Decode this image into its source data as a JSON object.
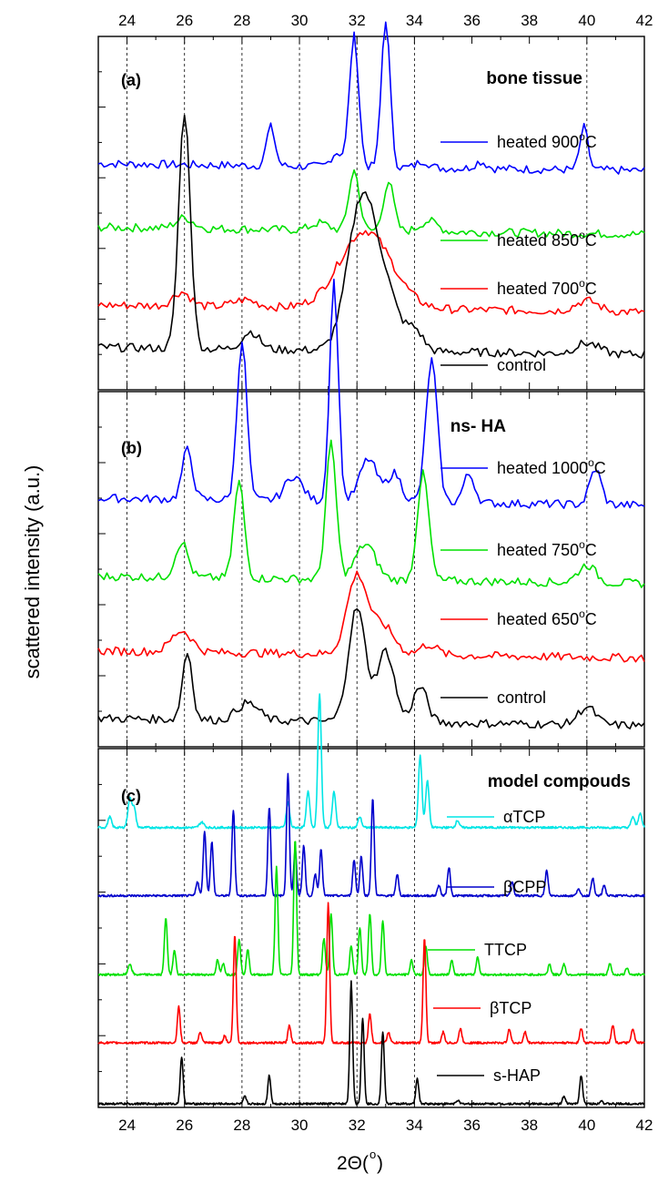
{
  "figure": {
    "ylabel": "scattered intensity (a.u.)",
    "xlabel_main": "2Θ(",
    "xlabel_sup": "o",
    "xlabel_close": ")",
    "xlim": [
      23,
      42
    ],
    "xticks": [
      24,
      26,
      28,
      30,
      32,
      34,
      36,
      38,
      40,
      42
    ],
    "dashed_lines_at": [
      24,
      26,
      28,
      30,
      32,
      34,
      40
    ]
  },
  "chart_data": [
    {
      "type": "line",
      "panel": "(a)",
      "title": "bone tissue",
      "xlim": [
        23,
        42
      ],
      "series": [
        {
          "name": "heated 900",
          "label_main": "heated 900",
          "label_sup": "o",
          "label_unit": "C",
          "color": "#0000ff",
          "base": 0.64,
          "peaks": [
            [
              29.0,
              0.11,
              0.15
            ],
            [
              31.9,
              0.37,
              0.16
            ],
            [
              33.0,
              0.42,
              0.15
            ],
            [
              31.3,
              0.04,
              0.2
            ],
            [
              34.3,
              0.02,
              0.2
            ],
            [
              36.3,
              0.02,
              0.2
            ],
            [
              39.9,
              0.12,
              0.14
            ]
          ]
        },
        {
          "name": "heated 850",
          "label_main": "heated 850",
          "label_sup": "o",
          "label_unit": "C",
          "color": "#00e000",
          "base": 0.46,
          "peaks": [
            [
              26.0,
              0.03,
              0.3
            ],
            [
              31.9,
              0.17,
              0.18
            ],
            [
              33.1,
              0.14,
              0.18
            ],
            [
              30.7,
              0.02,
              0.3
            ],
            [
              34.5,
              0.03,
              0.3
            ]
          ]
        },
        {
          "name": "heated 700",
          "label_main": "heated 700",
          "label_sup": "o",
          "label_unit": "C",
          "color": "#ff0000",
          "base": 0.24,
          "peaks": [
            [
              25.9,
              0.04,
              0.3
            ],
            [
              28.1,
              0.02,
              0.4
            ],
            [
              32.3,
              0.22,
              0.9
            ],
            [
              40.0,
              0.03,
              0.4
            ]
          ]
        },
        {
          "name": "control",
          "label_main": "control",
          "label_sup": "",
          "label_unit": "",
          "color": "#000000",
          "base": 0.12,
          "peaks": [
            [
              26.0,
              0.67,
              0.2
            ],
            [
              28.3,
              0.05,
              0.3
            ],
            [
              32.2,
              0.44,
              0.5
            ],
            [
              33.1,
              0.12,
              0.4
            ],
            [
              34.0,
              0.06,
              0.3
            ],
            [
              40.0,
              0.03,
              0.4
            ]
          ]
        }
      ]
    },
    {
      "type": "line",
      "panel": "(b)",
      "title": "ns- HA",
      "xlim": [
        23,
        42
      ],
      "series": [
        {
          "name": "heated 1000",
          "label_main": "heated 1000",
          "label_sup": "o",
          "label_unit": "C",
          "color": "#0000ff",
          "base": 0.7,
          "peaks": [
            [
              26.1,
              0.14,
              0.18
            ],
            [
              28.0,
              0.45,
              0.17
            ],
            [
              29.8,
              0.07,
              0.3
            ],
            [
              31.2,
              0.62,
              0.15
            ],
            [
              32.4,
              0.12,
              0.3
            ],
            [
              33.3,
              0.08,
              0.25
            ],
            [
              34.6,
              0.4,
              0.2
            ],
            [
              35.9,
              0.08,
              0.2
            ],
            [
              40.3,
              0.1,
              0.2
            ]
          ]
        },
        {
          "name": "heated 750",
          "label_main": "heated 750",
          "label_sup": "o",
          "label_unit": "C",
          "color": "#00e000",
          "base": 0.48,
          "peaks": [
            [
              25.9,
              0.1,
              0.22
            ],
            [
              27.9,
              0.27,
              0.18
            ],
            [
              31.1,
              0.38,
              0.18
            ],
            [
              32.3,
              0.1,
              0.35
            ],
            [
              34.3,
              0.3,
              0.2
            ],
            [
              40.0,
              0.05,
              0.3
            ]
          ]
        },
        {
          "name": "heated 650",
          "label_main": "heated 650",
          "label_sup": "o",
          "label_unit": "C",
          "color": "#ff0000",
          "base": 0.27,
          "peaks": [
            [
              25.9,
              0.06,
              0.35
            ],
            [
              32.0,
              0.22,
              0.35
            ],
            [
              32.9,
              0.08,
              0.4
            ],
            [
              34.5,
              0.03,
              0.3
            ]
          ]
        },
        {
          "name": "control",
          "label_main": "control",
          "label_sup": "",
          "label_unit": "",
          "color": "#000000",
          "base": 0.08,
          "peaks": [
            [
              26.1,
              0.19,
              0.17
            ],
            [
              28.0,
              0.03,
              0.3
            ],
            [
              28.4,
              0.03,
              0.3
            ],
            [
              32.0,
              0.32,
              0.3
            ],
            [
              33.0,
              0.2,
              0.3
            ],
            [
              34.2,
              0.1,
              0.25
            ],
            [
              40.0,
              0.05,
              0.3
            ]
          ]
        }
      ]
    },
    {
      "type": "line",
      "panel": "(c)",
      "title": "model compouds",
      "xlim": [
        23,
        42
      ],
      "series": [
        {
          "name": "αTCP",
          "label_main": "αTCP",
          "label_sup": "",
          "label_unit": "",
          "color": "#00e5e5",
          "base": 0.78,
          "peaks": [
            [
              23.4,
              0.03,
              0.06
            ],
            [
              24.1,
              0.08,
              0.07
            ],
            [
              24.25,
              0.05,
              0.06
            ],
            [
              26.6,
              0.015,
              0.08
            ],
            [
              29.6,
              0.07,
              0.06
            ],
            [
              30.3,
              0.1,
              0.06
            ],
            [
              30.7,
              0.37,
              0.06
            ],
            [
              31.2,
              0.1,
              0.06
            ],
            [
              32.1,
              0.03,
              0.06
            ],
            [
              34.2,
              0.2,
              0.06
            ],
            [
              34.45,
              0.13,
              0.06
            ],
            [
              35.5,
              0.02,
              0.06
            ],
            [
              41.6,
              0.03,
              0.06
            ],
            [
              41.85,
              0.04,
              0.06
            ]
          ]
        },
        {
          "name": "βCPP",
          "label_main": "βCPP",
          "label_sup": "",
          "label_unit": "",
          "color": "#0000cc",
          "base": 0.59,
          "peaks": [
            [
              26.45,
              0.04,
              0.05
            ],
            [
              26.7,
              0.18,
              0.05
            ],
            [
              26.95,
              0.15,
              0.05
            ],
            [
              27.7,
              0.24,
              0.05
            ],
            [
              28.95,
              0.25,
              0.05
            ],
            [
              29.6,
              0.34,
              0.05
            ],
            [
              29.85,
              0.13,
              0.05
            ],
            [
              30.15,
              0.14,
              0.05
            ],
            [
              30.55,
              0.06,
              0.05
            ],
            [
              30.75,
              0.13,
              0.05
            ],
            [
              31.9,
              0.1,
              0.05
            ],
            [
              32.15,
              0.11,
              0.05
            ],
            [
              32.55,
              0.27,
              0.05
            ],
            [
              33.4,
              0.06,
              0.05
            ],
            [
              34.85,
              0.03,
              0.05
            ],
            [
              35.2,
              0.08,
              0.05
            ],
            [
              37.4,
              0.04,
              0.05
            ],
            [
              38.6,
              0.07,
              0.05
            ],
            [
              39.7,
              0.02,
              0.05
            ],
            [
              40.2,
              0.05,
              0.05
            ],
            [
              40.6,
              0.03,
              0.05
            ]
          ]
        },
        {
          "name": "TTCP",
          "label_main": "TTCP",
          "label_sup": "",
          "label_unit": "",
          "color": "#00e000",
          "base": 0.37,
          "peaks": [
            [
              24.1,
              0.03,
              0.06
            ],
            [
              25.35,
              0.16,
              0.05
            ],
            [
              25.65,
              0.07,
              0.05
            ],
            [
              27.15,
              0.04,
              0.05
            ],
            [
              27.35,
              0.03,
              0.05
            ],
            [
              27.9,
              0.1,
              0.05
            ],
            [
              28.2,
              0.07,
              0.05
            ],
            [
              29.2,
              0.3,
              0.05
            ],
            [
              29.85,
              0.38,
              0.05
            ],
            [
              30.85,
              0.1,
              0.05
            ],
            [
              31.1,
              0.17,
              0.05
            ],
            [
              31.8,
              0.08,
              0.05
            ],
            [
              32.1,
              0.13,
              0.05
            ],
            [
              32.45,
              0.17,
              0.05
            ],
            [
              32.9,
              0.15,
              0.05
            ],
            [
              33.9,
              0.04,
              0.05
            ],
            [
              34.4,
              0.08,
              0.05
            ],
            [
              35.3,
              0.04,
              0.05
            ],
            [
              36.2,
              0.05,
              0.05
            ],
            [
              38.7,
              0.03,
              0.05
            ],
            [
              39.2,
              0.03,
              0.05
            ],
            [
              40.8,
              0.03,
              0.05
            ],
            [
              41.4,
              0.02,
              0.05
            ]
          ]
        },
        {
          "name": "βTCP",
          "label_main": "βTCP",
          "label_sup": "",
          "label_unit": "",
          "color": "#ff0000",
          "base": 0.18,
          "peaks": [
            [
              25.8,
              0.1,
              0.05
            ],
            [
              26.55,
              0.03,
              0.05
            ],
            [
              27.4,
              0.02,
              0.05
            ],
            [
              27.75,
              0.3,
              0.05
            ],
            [
              29.65,
              0.05,
              0.05
            ],
            [
              31.0,
              0.39,
              0.05
            ],
            [
              32.45,
              0.08,
              0.05
            ],
            [
              33.1,
              0.03,
              0.05
            ],
            [
              34.35,
              0.29,
              0.05
            ],
            [
              35.0,
              0.03,
              0.05
            ],
            [
              35.6,
              0.04,
              0.05
            ],
            [
              37.3,
              0.04,
              0.05
            ],
            [
              37.85,
              0.03,
              0.05
            ],
            [
              39.8,
              0.04,
              0.05
            ],
            [
              40.9,
              0.05,
              0.05
            ],
            [
              41.6,
              0.04,
              0.05
            ]
          ]
        },
        {
          "name": "s-HAP",
          "label_main": "s-HAP",
          "label_sup": "",
          "label_unit": "",
          "color": "#000000",
          "base": 0.01,
          "peaks": [
            [
              25.9,
              0.13,
              0.05
            ],
            [
              28.1,
              0.02,
              0.05
            ],
            [
              28.95,
              0.08,
              0.05
            ],
            [
              31.8,
              0.34,
              0.05
            ],
            [
              32.2,
              0.24,
              0.05
            ],
            [
              32.9,
              0.2,
              0.05
            ],
            [
              34.1,
              0.07,
              0.05
            ],
            [
              35.5,
              0.01,
              0.05
            ],
            [
              39.2,
              0.02,
              0.05
            ],
            [
              39.8,
              0.08,
              0.05
            ],
            [
              40.5,
              0.01,
              0.05
            ]
          ]
        }
      ]
    }
  ]
}
